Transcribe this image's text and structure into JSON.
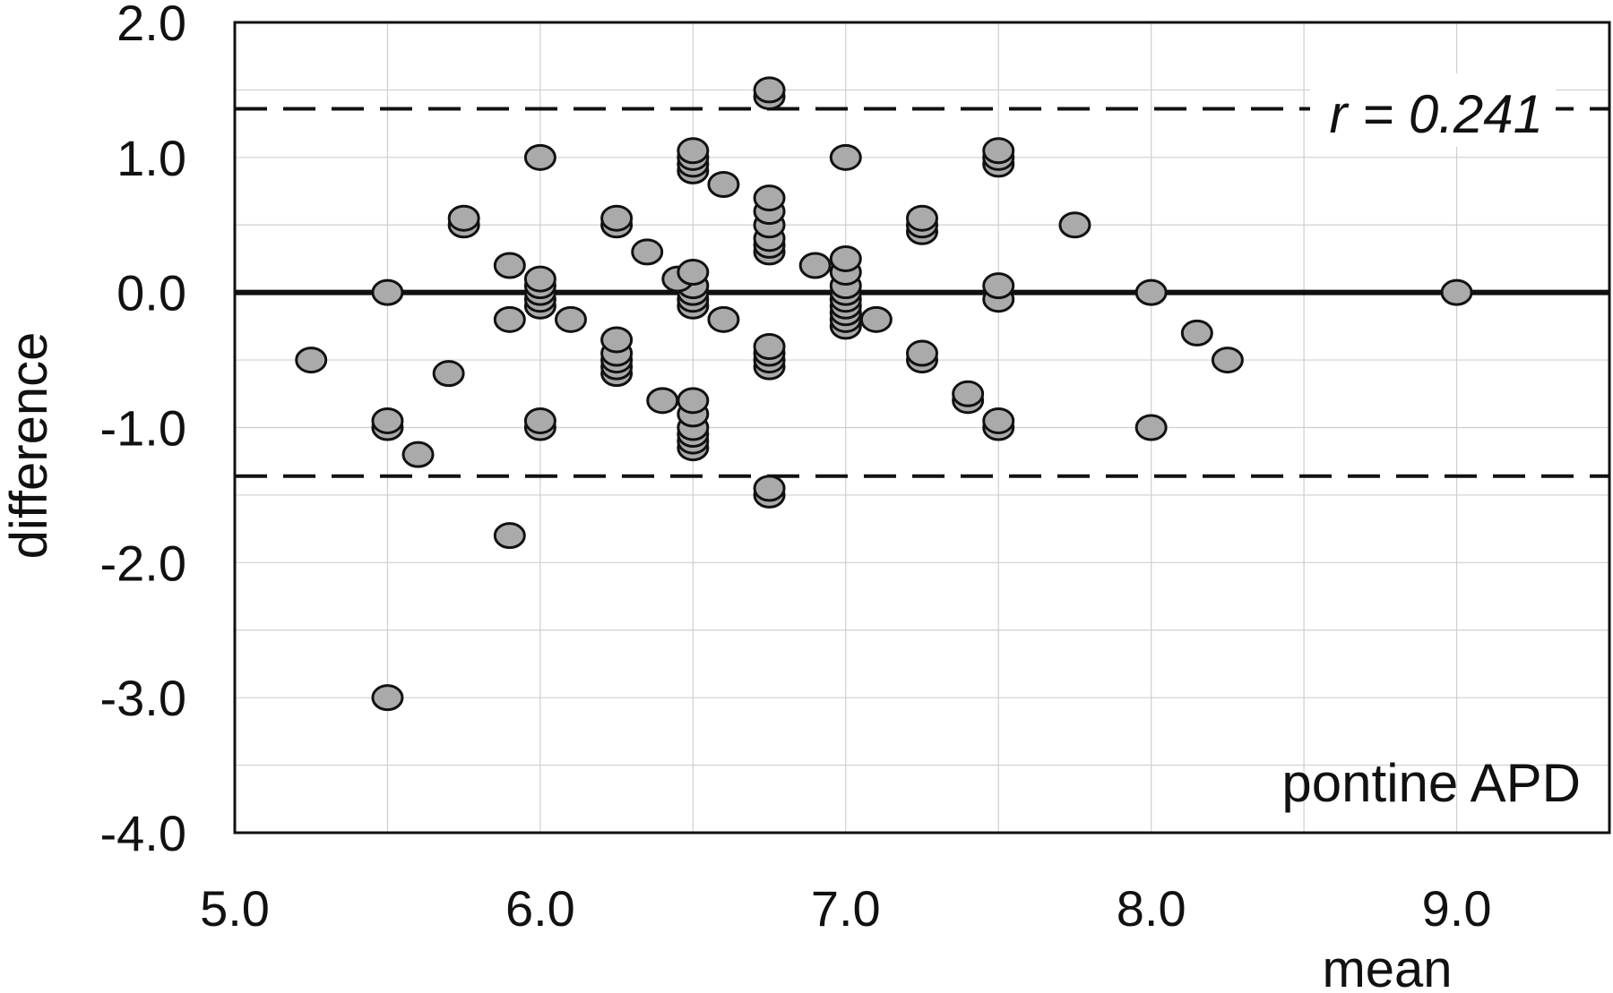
{
  "chart_data": {
    "type": "scatter",
    "title": "",
    "xlabel": "mean",
    "ylabel": "difference",
    "xlim": [
      5.0,
      9.5
    ],
    "ylim": [
      -4.0,
      2.0
    ],
    "x_ticks": [
      5.0,
      6.0,
      7.0,
      8.0,
      9.0
    ],
    "x_tick_labels": [
      "5.0",
      "6.0",
      "7.0",
      "8.0",
      "9.0"
    ],
    "y_ticks": [
      2.0,
      1.0,
      0.0,
      -1.0,
      -2.0,
      -3.0,
      -4.0
    ],
    "y_tick_labels": [
      "2.0",
      "1.0",
      "0.0",
      "-1.0",
      "-2.0",
      "-3.0",
      "-4.0"
    ],
    "grid": true,
    "annotations": {
      "r_label": "r = 0.241",
      "region_label": "pontine APD"
    },
    "reference_lines": [
      {
        "kind": "mean",
        "y": 0.0,
        "style": "solid"
      },
      {
        "kind": "upper_limit",
        "y": 1.36,
        "style": "dashed"
      },
      {
        "kind": "lower_limit",
        "y": -1.36,
        "style": "dashed"
      }
    ],
    "marker_color": "#aaaaaa",
    "points": [
      {
        "x": 5.25,
        "y": -0.5
      },
      {
        "x": 5.5,
        "y": 0.0
      },
      {
        "x": 5.5,
        "y": -1.0
      },
      {
        "x": 5.5,
        "y": -0.95
      },
      {
        "x": 5.5,
        "y": -3.0
      },
      {
        "x": 5.6,
        "y": -1.2
      },
      {
        "x": 5.7,
        "y": -0.6
      },
      {
        "x": 5.75,
        "y": 0.5
      },
      {
        "x": 5.75,
        "y": 0.55
      },
      {
        "x": 5.9,
        "y": 0.2
      },
      {
        "x": 5.9,
        "y": -0.2
      },
      {
        "x": 5.9,
        "y": -1.8
      },
      {
        "x": 6.0,
        "y": 1.0
      },
      {
        "x": 6.0,
        "y": 0.1
      },
      {
        "x": 6.0,
        "y": 0.05
      },
      {
        "x": 6.0,
        "y": 0.0
      },
      {
        "x": 6.0,
        "y": -0.05
      },
      {
        "x": 6.0,
        "y": -0.1
      },
      {
        "x": 6.0,
        "y": -1.0
      },
      {
        "x": 6.0,
        "y": -0.95
      },
      {
        "x": 6.1,
        "y": -0.2
      },
      {
        "x": 6.25,
        "y": 0.55
      },
      {
        "x": 6.25,
        "y": 0.5
      },
      {
        "x": 6.25,
        "y": -0.35
      },
      {
        "x": 6.25,
        "y": -0.45
      },
      {
        "x": 6.25,
        "y": -0.5
      },
      {
        "x": 6.25,
        "y": -0.55
      },
      {
        "x": 6.25,
        "y": -0.6
      },
      {
        "x": 6.35,
        "y": 0.3
      },
      {
        "x": 6.4,
        "y": -0.8
      },
      {
        "x": 6.45,
        "y": 0.1
      },
      {
        "x": 6.5,
        "y": 1.05
      },
      {
        "x": 6.5,
        "y": 1.0
      },
      {
        "x": 6.5,
        "y": 0.95
      },
      {
        "x": 6.5,
        "y": 0.9
      },
      {
        "x": 6.5,
        "y": 0.15
      },
      {
        "x": 6.5,
        "y": 0.05
      },
      {
        "x": 6.5,
        "y": 0.0
      },
      {
        "x": 6.5,
        "y": -0.05
      },
      {
        "x": 6.5,
        "y": -0.1
      },
      {
        "x": 6.5,
        "y": -0.8
      },
      {
        "x": 6.5,
        "y": -0.9
      },
      {
        "x": 6.5,
        "y": -1.0
      },
      {
        "x": 6.5,
        "y": -1.05
      },
      {
        "x": 6.5,
        "y": -1.1
      },
      {
        "x": 6.5,
        "y": -1.15
      },
      {
        "x": 6.6,
        "y": 0.8
      },
      {
        "x": 6.6,
        "y": -0.2
      },
      {
        "x": 6.75,
        "y": 1.5
      },
      {
        "x": 6.75,
        "y": 1.45
      },
      {
        "x": 6.75,
        "y": 0.7
      },
      {
        "x": 6.75,
        "y": 0.6
      },
      {
        "x": 6.75,
        "y": 0.5
      },
      {
        "x": 6.75,
        "y": 0.4
      },
      {
        "x": 6.75,
        "y": 0.35
      },
      {
        "x": 6.75,
        "y": 0.3
      },
      {
        "x": 6.75,
        "y": -0.4
      },
      {
        "x": 6.75,
        "y": -0.45
      },
      {
        "x": 6.75,
        "y": -0.5
      },
      {
        "x": 6.75,
        "y": -0.55
      },
      {
        "x": 6.75,
        "y": -1.45
      },
      {
        "x": 6.75,
        "y": -1.5
      },
      {
        "x": 6.9,
        "y": 0.2
      },
      {
        "x": 7.0,
        "y": 1.0
      },
      {
        "x": 7.0,
        "y": 0.25
      },
      {
        "x": 7.0,
        "y": 0.15
      },
      {
        "x": 7.0,
        "y": 0.05
      },
      {
        "x": 7.0,
        "y": 0.0
      },
      {
        "x": 7.0,
        "y": -0.05
      },
      {
        "x": 7.0,
        "y": -0.1
      },
      {
        "x": 7.0,
        "y": -0.15
      },
      {
        "x": 7.0,
        "y": -0.2
      },
      {
        "x": 7.0,
        "y": -0.25
      },
      {
        "x": 7.1,
        "y": -0.2
      },
      {
        "x": 7.25,
        "y": 0.55
      },
      {
        "x": 7.25,
        "y": 0.5
      },
      {
        "x": 7.25,
        "y": 0.45
      },
      {
        "x": 7.25,
        "y": -0.45
      },
      {
        "x": 7.25,
        "y": -0.5
      },
      {
        "x": 7.4,
        "y": -0.75
      },
      {
        "x": 7.4,
        "y": -0.8
      },
      {
        "x": 7.5,
        "y": 1.05
      },
      {
        "x": 7.5,
        "y": 1.0
      },
      {
        "x": 7.5,
        "y": 0.95
      },
      {
        "x": 7.5,
        "y": 0.05
      },
      {
        "x": 7.5,
        "y": -0.05
      },
      {
        "x": 7.5,
        "y": -0.95
      },
      {
        "x": 7.5,
        "y": -1.0
      },
      {
        "x": 7.75,
        "y": 0.5
      },
      {
        "x": 8.0,
        "y": 0.0
      },
      {
        "x": 8.0,
        "y": -1.0
      },
      {
        "x": 8.15,
        "y": -0.3
      },
      {
        "x": 8.25,
        "y": -0.5
      },
      {
        "x": 9.0,
        "y": 0.0
      }
    ]
  }
}
